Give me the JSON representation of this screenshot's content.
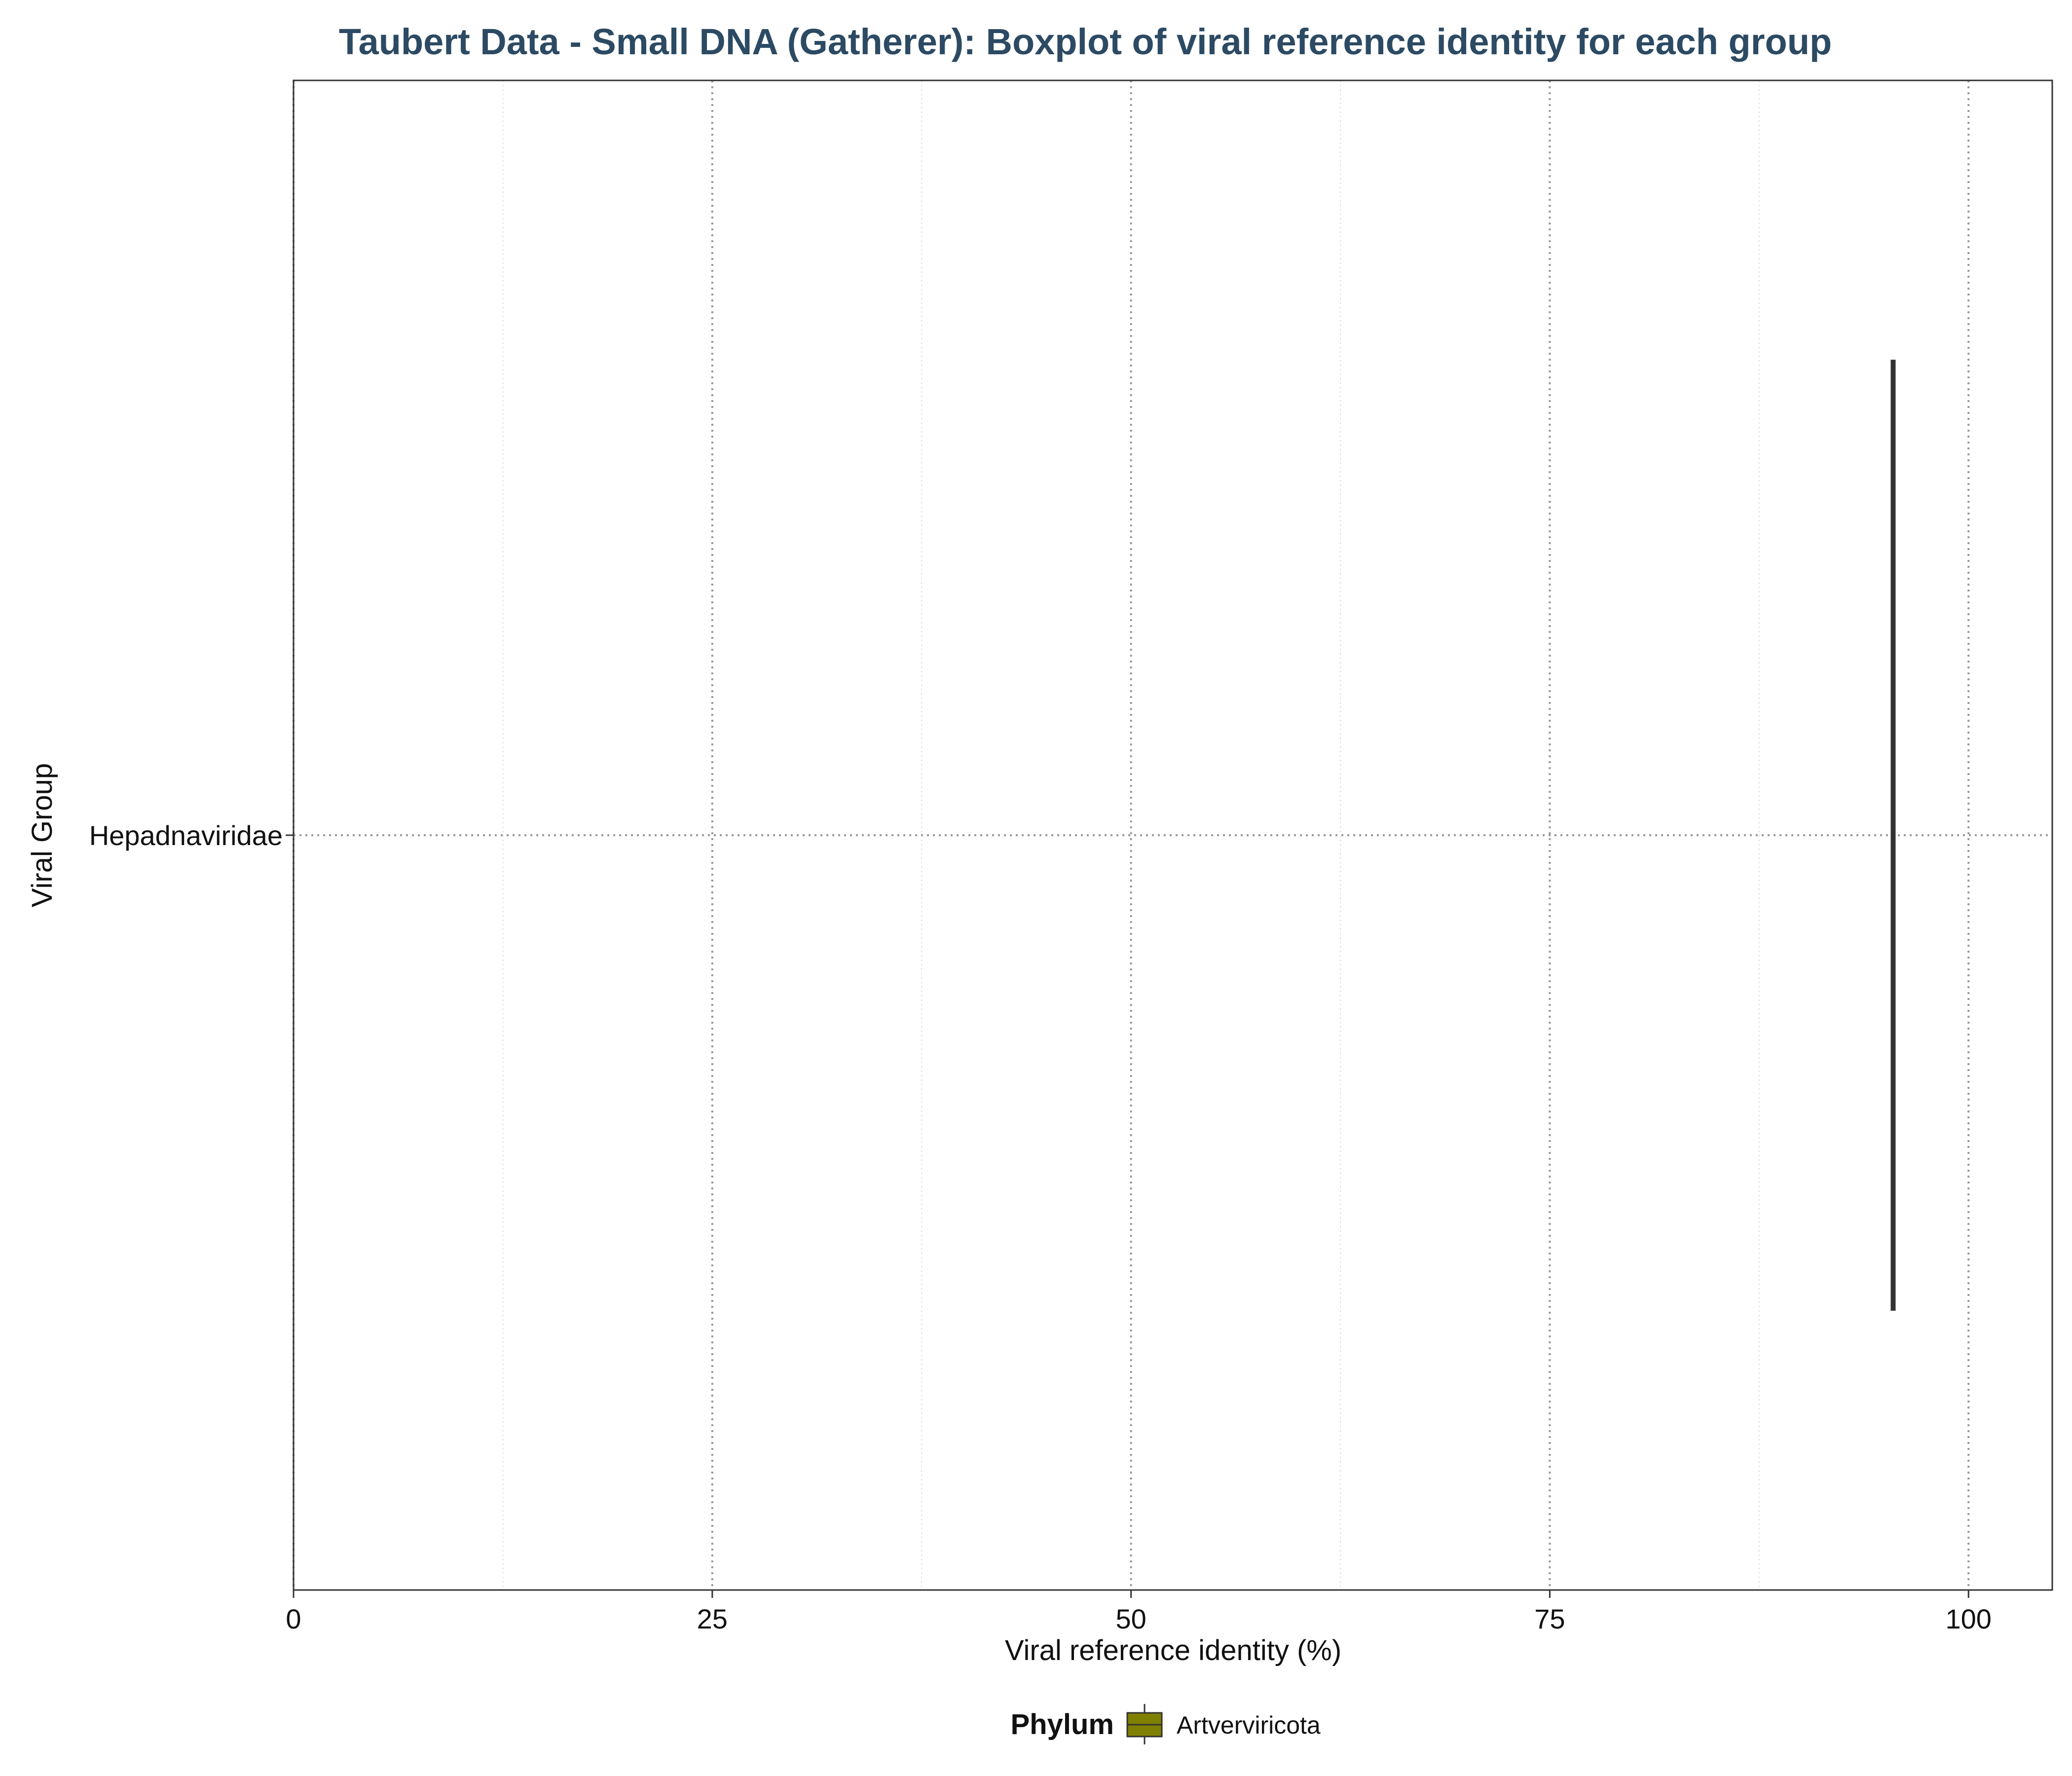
{
  "chart_data": {
    "type": "boxplot",
    "orientation": "horizontal",
    "title": "Taubert Data - Small DNA (Gatherer): Boxplot of viral reference identity for each group",
    "xlabel": "Viral reference identity (%)",
    "ylabel": "Viral Group",
    "xlim": [
      0,
      105
    ],
    "x_ticks": [
      0,
      25,
      50,
      75,
      100
    ],
    "x_tick_labels": [
      "0",
      "25",
      "50",
      "75",
      "100"
    ],
    "categories": [
      "Hepadnaviridae"
    ],
    "series": [
      {
        "category": "Hepadnaviridae",
        "phylum": "Artverviricota",
        "min": 95.5,
        "q1": 95.5,
        "median": 95.5,
        "q3": 95.5,
        "max": 95.5
      }
    ],
    "grid": "dotted major, light minor",
    "legend": {
      "title": "Phylum",
      "position": "bottom",
      "entries": [
        {
          "label": "Artverviricota",
          "color": "#808000"
        }
      ]
    },
    "colors": {
      "title": "#2c4a63",
      "box_line": "#333333",
      "fill": "#808000",
      "grid_major": "#999999",
      "grid_minor": "#dddddd"
    }
  }
}
